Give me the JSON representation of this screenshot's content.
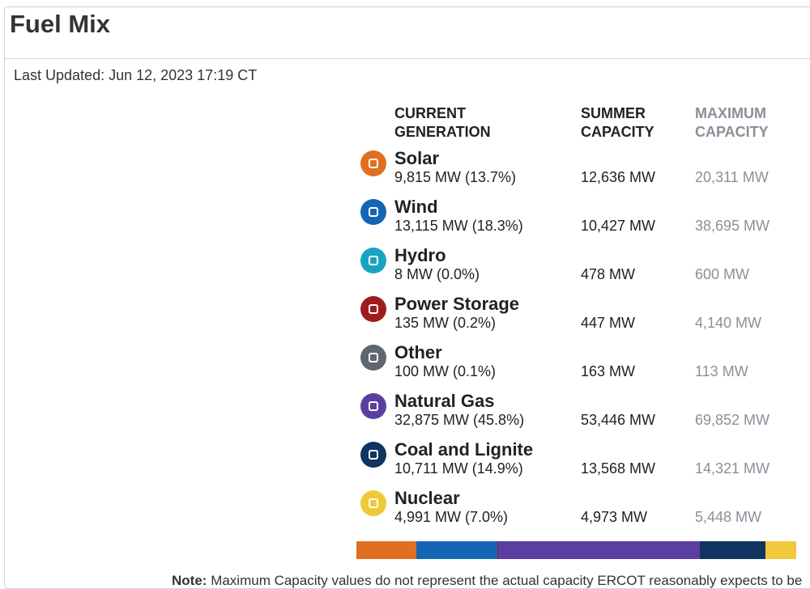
{
  "header": {
    "title": "Fuel Mix"
  },
  "last_updated": "Last Updated: Jun 12, 2023 17:19 CT",
  "table": {
    "columns": [
      [
        "CURRENT",
        "GENERATION"
      ],
      [
        "SUMMER",
        "CAPACITY"
      ],
      [
        "MAXIMUM",
        "CAPACITY"
      ]
    ],
    "rows": [
      {
        "name": "Solar",
        "generation": "9,815 MW (13.7%)",
        "share": 13.7,
        "summer": "12,636 MW",
        "maximum": "20,311 MW",
        "color": "#e07020"
      },
      {
        "name": "Wind",
        "generation": "13,115 MW (18.3%)",
        "share": 18.3,
        "summer": "10,427 MW",
        "maximum": "38,695 MW",
        "color": "#1565b5"
      },
      {
        "name": "Hydro",
        "generation": "8 MW (0.0%)",
        "share": 0.0,
        "summer": "478 MW",
        "maximum": "600 MW",
        "color": "#1aa3c0"
      },
      {
        "name": "Power Storage",
        "generation": "135 MW (0.2%)",
        "share": 0.2,
        "summer": "447 MW",
        "maximum": "4,140 MW",
        "color": "#a01c1c"
      },
      {
        "name": "Other",
        "generation": "100 MW (0.1%)",
        "share": 0.1,
        "summer": "163 MW",
        "maximum": "113 MW",
        "color": "#5f6670"
      },
      {
        "name": "Natural Gas",
        "generation": "32,875 MW (45.8%)",
        "share": 45.8,
        "summer": "53,446 MW",
        "maximum": "69,852 MW",
        "color": "#5b3fa0"
      },
      {
        "name": "Coal and Lignite",
        "generation": "10,711 MW (14.9%)",
        "share": 14.9,
        "summer": "13,568 MW",
        "maximum": "14,321 MW",
        "color": "#0f3560"
      },
      {
        "name": "Nuclear",
        "generation": "4,991 MW (7.0%)",
        "share": 7.0,
        "summer": "4,973 MW",
        "maximum": "5,448 MW",
        "color": "#f0c93a"
      }
    ]
  },
  "note": {
    "label": "Note:",
    "text": "Maximum Capacity values do not represent the actual capacity ERCOT reasonably expects to be"
  }
}
